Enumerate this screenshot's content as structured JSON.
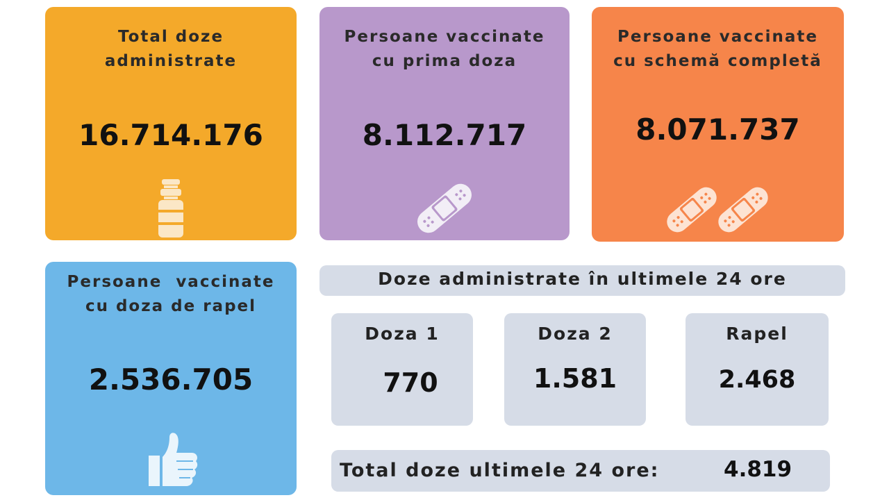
{
  "cards": {
    "total_doses": {
      "title_line1": "Total doze",
      "title_line2": "administrate",
      "value": "16.714.176",
      "icon": "vaccine-vial-icon",
      "color": "#f4a92a"
    },
    "first_dose": {
      "title_line1": "Persoane vaccinate",
      "title_line2": "cu prima doza",
      "value": "8.112.717",
      "icon": "bandage-icon",
      "color": "#b898cb"
    },
    "complete_scheme": {
      "title_line1": "Persoane vaccinate",
      "title_line2": "cu schemă completă",
      "value": "8.071.737",
      "icon": "two-bandages-icon",
      "color": "#f6854a"
    },
    "booster": {
      "title_line1": "Persoane  vaccinate",
      "title_line2": "cu doza de rapel",
      "value": "2.536.705",
      "icon": "thumbs-up-icon",
      "color": "#6db7e8"
    }
  },
  "last24h": {
    "heading": "Doze administrate în ultimele 24 ore",
    "doses": [
      {
        "label": "Doza 1",
        "value": "770"
      },
      {
        "label": "Doza 2",
        "value": "1.581"
      },
      {
        "label": "Rapel",
        "value": "2.468"
      }
    ],
    "total_label": "Total doze ultimele 24 ore:",
    "total_value": "4.819"
  }
}
